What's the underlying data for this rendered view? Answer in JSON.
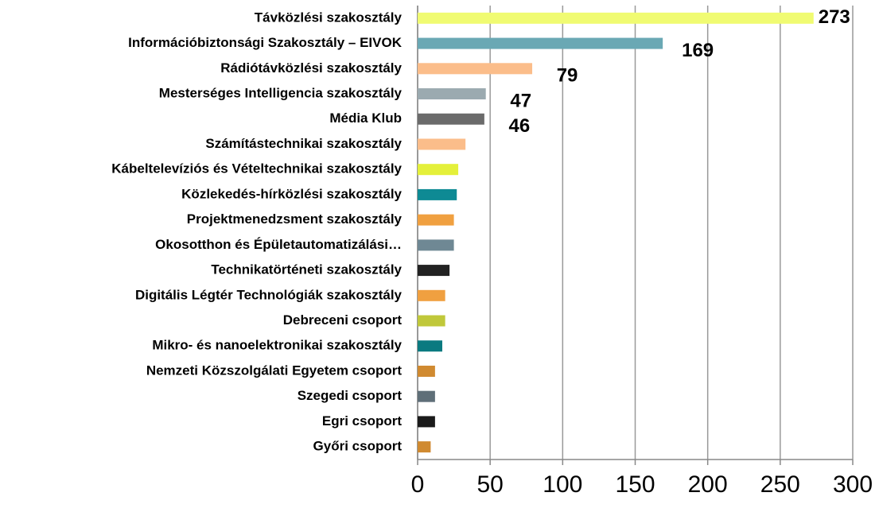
{
  "chart_data": {
    "type": "bar",
    "orientation": "horizontal",
    "categories": [
      "Távközlési szakosztály",
      "Információbiztonsági Szakosztály – EIVOK",
      "Rádiótávközlési szakosztály",
      "Mesterséges Intelligencia szakosztály",
      "Média Klub",
      "Számítástechnikai szakosztály",
      "Kábeltelevíziós és Vételtechnikai szakosztály",
      "Közlekedés-hírközlési szakosztály",
      "Projektmenedzsment szakosztály",
      "Okosotthon és Épületautomatizálási…",
      "Technikatörténeti szakosztály",
      "Digitális Légtér Technológiák szakosztály",
      "Debreceni csoport",
      "Mikro- és nanoelektronikai szakosztály",
      "Nemzeti Közszolgálati Egyetem csoport",
      "Szegedi csoport",
      "Egri csoport",
      "Győri csoport"
    ],
    "values": [
      273,
      169,
      79,
      47,
      46,
      33,
      28,
      27,
      25,
      25,
      22,
      19,
      19,
      17,
      12,
      12,
      12,
      9
    ],
    "value_labels": [
      "273",
      "169",
      "79",
      "47",
      "46",
      null,
      null,
      null,
      null,
      null,
      null,
      null,
      null,
      null,
      null,
      null,
      null,
      null
    ],
    "colors": [
      "#f0fb72",
      "#6aa8b4",
      "#fbbd8a",
      "#9baab0",
      "#6b6b6b",
      "#fbbd8a",
      "#e4f03a",
      "#0e8a94",
      "#f0a040",
      "#6f8894",
      "#222222",
      "#f0a040",
      "#c0c83a",
      "#0a7a80",
      "#d08a30",
      "#5f6f78",
      "#1a1a1a",
      "#d08a30"
    ],
    "xlim": [
      0,
      300
    ],
    "xticks": [
      0,
      50,
      100,
      150,
      200,
      250,
      300
    ],
    "grid": true
  }
}
